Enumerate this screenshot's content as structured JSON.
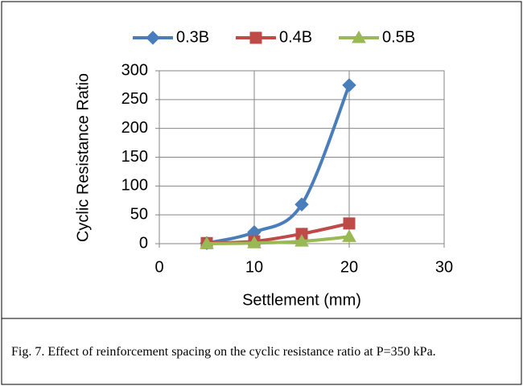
{
  "chart_data": {
    "type": "line",
    "x": [
      5,
      10,
      15,
      20
    ],
    "series": [
      {
        "name": "0.3B",
        "color": "#4a7ebb",
        "marker": "diamond",
        "values": [
          1,
          20,
          68,
          275
        ]
      },
      {
        "name": "0.4B",
        "color": "#be4b48",
        "marker": "square",
        "values": [
          1,
          4,
          17,
          35
        ]
      },
      {
        "name": "0.5B",
        "color": "#98b954",
        "marker": "triangle",
        "values": [
          0,
          1,
          4,
          12
        ]
      }
    ],
    "xlabel": "Settlement (mm)",
    "ylabel": "Cyclic Resistance Ratio",
    "xlim": [
      0,
      30
    ],
    "xticks": [
      0,
      10,
      20,
      30
    ],
    "ylim": [
      0,
      300
    ],
    "yticks": [
      0,
      50,
      100,
      150,
      200,
      250,
      300
    ],
    "grid": true,
    "smooth": true,
    "legend": "top"
  },
  "caption": "Fig. 7. Effect of reinforcement spacing on the cyclic resistance ratio at P=350 kPa."
}
